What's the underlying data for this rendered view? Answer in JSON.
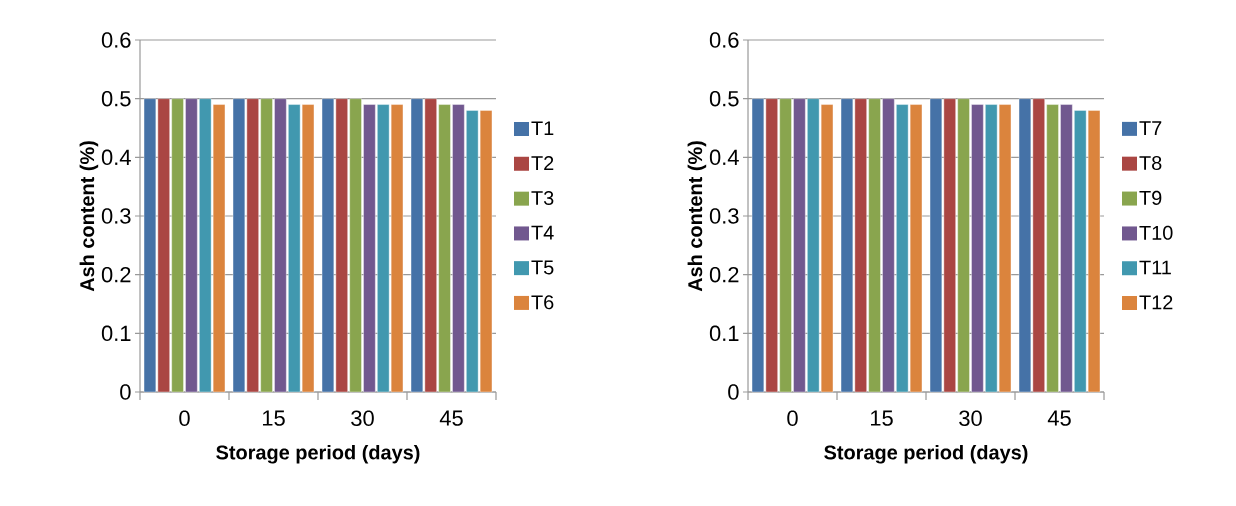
{
  "chart_data": [
    {
      "type": "bar",
      "categories": [
        "0",
        "15",
        "30",
        "45"
      ],
      "xlabel": "Storage period (days)",
      "ylabel": "Ash content (%)",
      "ylim": [
        0,
        0.6
      ],
      "yticks": [
        0,
        0.1,
        0.2,
        0.3,
        0.4,
        0.5,
        0.6
      ],
      "grid": "y",
      "legend": "right",
      "series": [
        {
          "name": "T1",
          "color": "#4572a7",
          "values": [
            0.5,
            0.5,
            0.5,
            0.5
          ]
        },
        {
          "name": "T2",
          "color": "#aa4643",
          "values": [
            0.5,
            0.5,
            0.5,
            0.5
          ]
        },
        {
          "name": "T3",
          "color": "#89a54e",
          "values": [
            0.5,
            0.5,
            0.5,
            0.49
          ]
        },
        {
          "name": "T4",
          "color": "#71588f",
          "values": [
            0.5,
            0.5,
            0.49,
            0.49
          ]
        },
        {
          "name": "T5",
          "color": "#4198af",
          "values": [
            0.5,
            0.49,
            0.49,
            0.48
          ]
        },
        {
          "name": "T6",
          "color": "#db843d",
          "values": [
            0.49,
            0.49,
            0.49,
            0.48
          ]
        }
      ]
    },
    {
      "type": "bar",
      "categories": [
        "0",
        "15",
        "30",
        "45"
      ],
      "xlabel": "Storage period (days)",
      "ylabel": "Ash content (%)",
      "ylim": [
        0,
        0.6
      ],
      "yticks": [
        0,
        0.1,
        0.2,
        0.3,
        0.4,
        0.5,
        0.6
      ],
      "grid": "y",
      "legend": "right",
      "series": [
        {
          "name": "T7",
          "color": "#4572a7",
          "values": [
            0.5,
            0.5,
            0.5,
            0.5
          ]
        },
        {
          "name": "T8",
          "color": "#aa4643",
          "values": [
            0.5,
            0.5,
            0.5,
            0.5
          ]
        },
        {
          "name": "T9",
          "color": "#89a54e",
          "values": [
            0.5,
            0.5,
            0.5,
            0.49
          ]
        },
        {
          "name": "T10",
          "color": "#71588f",
          "values": [
            0.5,
            0.5,
            0.49,
            0.49
          ]
        },
        {
          "name": "T11",
          "color": "#4198af",
          "values": [
            0.5,
            0.49,
            0.49,
            0.48
          ]
        },
        {
          "name": "T12",
          "color": "#db843d",
          "values": [
            0.49,
            0.49,
            0.49,
            0.48
          ]
        }
      ]
    }
  ]
}
